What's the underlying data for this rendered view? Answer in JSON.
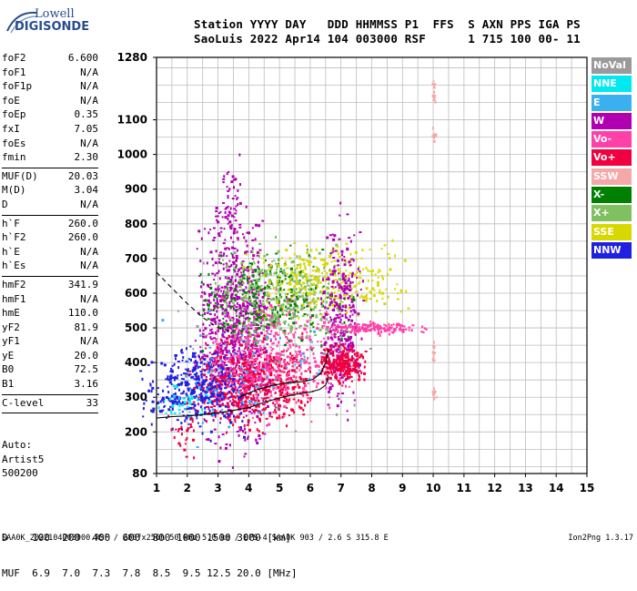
{
  "logo": {
    "line1": "Lowell",
    "line2": "DIGISONDE"
  },
  "header": {
    "line1": "Station YYYY DAY   DDD HHMMSS P1  FFS  S AXN PPS IGA PS",
    "line2": "SaoLuis 2022 Apr14 104 003000 RSF      1 715 100 00- 11"
  },
  "params": {
    "group1": [
      {
        "label": "foF2",
        "value": "6.600"
      },
      {
        "label": "foF1",
        "value": "N/A"
      },
      {
        "label": "foF1p",
        "value": "N/A"
      },
      {
        "label": "foE",
        "value": "N/A"
      },
      {
        "label": "foEp",
        "value": "0.35"
      },
      {
        "label": "fxI",
        "value": "7.05"
      },
      {
        "label": "foEs",
        "value": "N/A"
      },
      {
        "label": "fmin",
        "value": "2.30"
      }
    ],
    "group2": [
      {
        "label": "MUF(D)",
        "value": "20.03"
      },
      {
        "label": "M(D)",
        "value": "3.04"
      },
      {
        "label": "D",
        "value": "N/A"
      }
    ],
    "group3": [
      {
        "label": "h`F",
        "value": "260.0"
      },
      {
        "label": "h`F2",
        "value": "260.0"
      },
      {
        "label": "h`E",
        "value": "N/A"
      },
      {
        "label": "h`Es",
        "value": "N/A"
      }
    ],
    "group4": [
      {
        "label": "hmF2",
        "value": "341.9"
      },
      {
        "label": "hmF1",
        "value": "N/A"
      },
      {
        "label": "hmE",
        "value": "110.0"
      },
      {
        "label": "yF2",
        "value": "81.9"
      },
      {
        "label": "yF1",
        "value": "N/A"
      },
      {
        "label": "yE",
        "value": "20.0"
      },
      {
        "label": "B0",
        "value": "72.5"
      },
      {
        "label": "B1",
        "value": "3.16"
      }
    ],
    "clevel": {
      "label": "C-level",
      "value": "33"
    }
  },
  "auto": {
    "line1": "Auto:",
    "line2": "Artist5",
    "line3": "500200"
  },
  "legend": [
    {
      "label": "NoVal",
      "color": "#9a9a9a"
    },
    {
      "label": "NNE",
      "color": "#00e8f0"
    },
    {
      "label": "E",
      "color": "#3ab0f0"
    },
    {
      "label": "W",
      "color": "#b000b0"
    },
    {
      "label": "Vo-",
      "color": "#ff40a8"
    },
    {
      "label": "Vo+",
      "color": "#f00040"
    },
    {
      "label": "SSW",
      "color": "#f4a8a8"
    },
    {
      "label": "X-",
      "color": "#008000"
    },
    {
      "label": "X+",
      "color": "#80c060"
    },
    {
      "label": "SSE",
      "color": "#d8d800"
    },
    {
      "label": "NNW",
      "color": "#2020e0"
    }
  ],
  "dmuf": {
    "line1": "D    100  200  400  600  800 1000 1500 3000 [km]",
    "line2": "MUF  6.9  7.0  7.3  7.8  8.5  9.5 12.5 20.0 [MHz]"
  },
  "footer": "SAA0K_2022104003000.RSF / 280fx256h 50 kHz 5.0 km / DPS-4 SAA0K 903 / 2.6 S 315.8 E",
  "version": "Ion2Png 1.3.17",
  "chart_data": {
    "type": "scatter",
    "title": "",
    "xlabel": "",
    "ylabel": "",
    "xlim": [
      1,
      15
    ],
    "ylim": [
      80,
      1280
    ],
    "x_ticks": [
      1,
      2,
      3,
      4,
      5,
      6,
      7,
      8,
      9,
      10,
      11,
      12,
      13,
      14,
      15
    ],
    "y_ticks": [
      80,
      200,
      300,
      400,
      500,
      600,
      700,
      800,
      900,
      1000,
      1100,
      1280
    ],
    "grid": true,
    "legend_placement": "right",
    "clusters": [
      {
        "series": "W",
        "x": [
          2.6,
          4.4
        ],
        "y": [
          250,
          720
        ],
        "n": 900
      },
      {
        "series": "Vo+",
        "x": [
          2.6,
          5.5
        ],
        "y": [
          250,
          430
        ],
        "n": 650
      },
      {
        "series": "NNW",
        "x": [
          1.0,
          3.4
        ],
        "y": [
          240,
          420
        ],
        "n": 420
      },
      {
        "series": "Vo-",
        "x": [
          3.2,
          6.7
        ],
        "y": [
          300,
          560
        ],
        "n": 480
      },
      {
        "series": "X-",
        "x": [
          3.0,
          6.6
        ],
        "y": [
          480,
          680
        ],
        "n": 320
      },
      {
        "series": "X+",
        "x": [
          3.5,
          6.6
        ],
        "y": [
          500,
          700
        ],
        "n": 300
      },
      {
        "series": "SSE",
        "x": [
          4.6,
          8.4
        ],
        "y": [
          560,
          720
        ],
        "n": 300
      },
      {
        "series": "W",
        "x": [
          6.5,
          7.5
        ],
        "y": [
          330,
          720
        ],
        "n": 330
      },
      {
        "series": "Vo+",
        "x": [
          6.5,
          7.6
        ],
        "y": [
          360,
          440
        ],
        "n": 260
      },
      {
        "series": "Vo-",
        "x": [
          6.8,
          9.4
        ],
        "y": [
          490,
          515
        ],
        "n": 160
      },
      {
        "series": "E",
        "x": [
          2.0,
          6.0
        ],
        "y": [
          240,
          500
        ],
        "n": 80
      },
      {
        "series": "NNE",
        "x": [
          1.3,
          2.7
        ],
        "y": [
          250,
          330
        ],
        "n": 40
      },
      {
        "series": "NoVal",
        "x": [
          2.5,
          7.0
        ],
        "y": [
          300,
          650
        ],
        "n": 60
      },
      {
        "series": "W",
        "x": [
          3.0,
          3.8
        ],
        "y": [
          720,
          950
        ],
        "n": 70
      },
      {
        "series": "Vo+",
        "x": [
          1.4,
          2.2
        ],
        "y": [
          130,
          240
        ],
        "n": 25
      },
      {
        "series": "SSW",
        "x": [
          9.95,
          10.05
        ],
        "y": [
          300,
          330
        ],
        "n": 12
      },
      {
        "series": "SSW",
        "x": [
          9.95,
          10.05
        ],
        "y": [
          400,
          470
        ],
        "n": 14
      },
      {
        "series": "SSW",
        "x": [
          9.95,
          10.05
        ],
        "y": [
          1040,
          1080
        ],
        "n": 10
      },
      {
        "series": "SSW",
        "x": [
          9.95,
          10.05
        ],
        "y": [
          1150,
          1210
        ],
        "n": 12
      }
    ],
    "traces": [
      {
        "name": "profile",
        "style": "solid",
        "x": [
          1.0,
          1.5,
          2.0,
          2.5,
          3.0,
          3.5,
          4.0,
          4.5,
          5.0,
          5.5,
          6.0,
          6.3,
          6.5,
          6.6
        ],
        "y": [
          240,
          244,
          246,
          250,
          255,
          262,
          270,
          285,
          298,
          308,
          315,
          322,
          335,
          360
        ]
      },
      {
        "name": "trace-solid",
        "style": "solid",
        "x": [
          3.7,
          4.2,
          4.8,
          5.3,
          5.8,
          6.1,
          6.35,
          6.5,
          6.6
        ],
        "y": [
          300,
          320,
          335,
          342,
          345,
          352,
          370,
          400,
          440
        ]
      },
      {
        "name": "trace-dashed",
        "style": "dashed",
        "x": [
          1.0,
          1.5,
          2.0,
          2.5,
          3.0,
          3.5
        ],
        "y": [
          660,
          615,
          570,
          530,
          500,
          490
        ]
      }
    ]
  }
}
